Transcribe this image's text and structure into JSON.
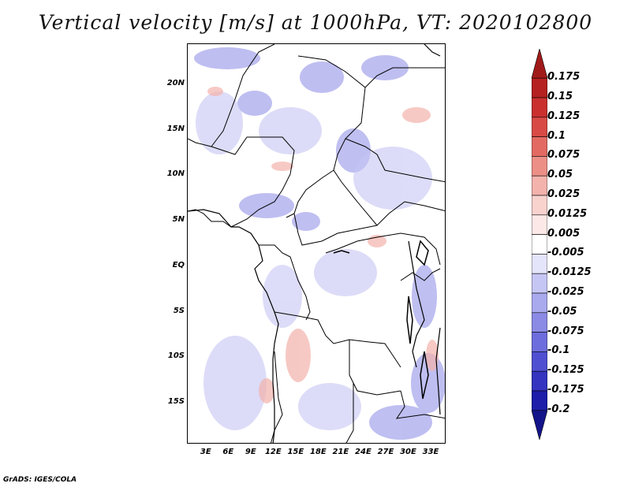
{
  "title": "Vertical velocity [m/s] at 1000hPa, VT: 2020102800",
  "credit": "GrADS: IGES/COLA",
  "lat_labels": [
    "20N",
    "15N",
    "10N",
    "5N",
    "EQ",
    "5S",
    "10S",
    "15S"
  ],
  "lat_values": [
    20,
    15,
    10,
    5,
    0,
    -5,
    -10,
    -15
  ],
  "lon_labels": [
    "3E",
    "6E",
    "9E",
    "12E",
    "15E",
    "18E",
    "21E",
    "24E",
    "27E",
    "30E",
    "33E"
  ],
  "lon_values": [
    3,
    6,
    9,
    12,
    15,
    18,
    21,
    24,
    27,
    30,
    33
  ],
  "colorbar": {
    "labels": [
      "0.175",
      "0.15",
      "0.125",
      "0.1",
      "0.075",
      "0.05",
      "0.025",
      "0.0125",
      "0.005",
      "-0.005",
      "-0.0125",
      "-0.025",
      "-0.05",
      "-0.075",
      "-0.1",
      "-0.125",
      "-0.175",
      "-0.2"
    ],
    "colors": [
      "#a11a1a",
      "#b52020",
      "#c9302e",
      "#d84a45",
      "#e36a62",
      "#ec8f87",
      "#f3b2ab",
      "#f8d2cd",
      "#fce8e6",
      "#ffffff",
      "#e4e4fb",
      "#c6c6f5",
      "#a9a9ee",
      "#8b8be6",
      "#6d6ddd",
      "#4f4fd1",
      "#3434c0",
      "#1d1da9",
      "#14148a"
    ]
  }
}
